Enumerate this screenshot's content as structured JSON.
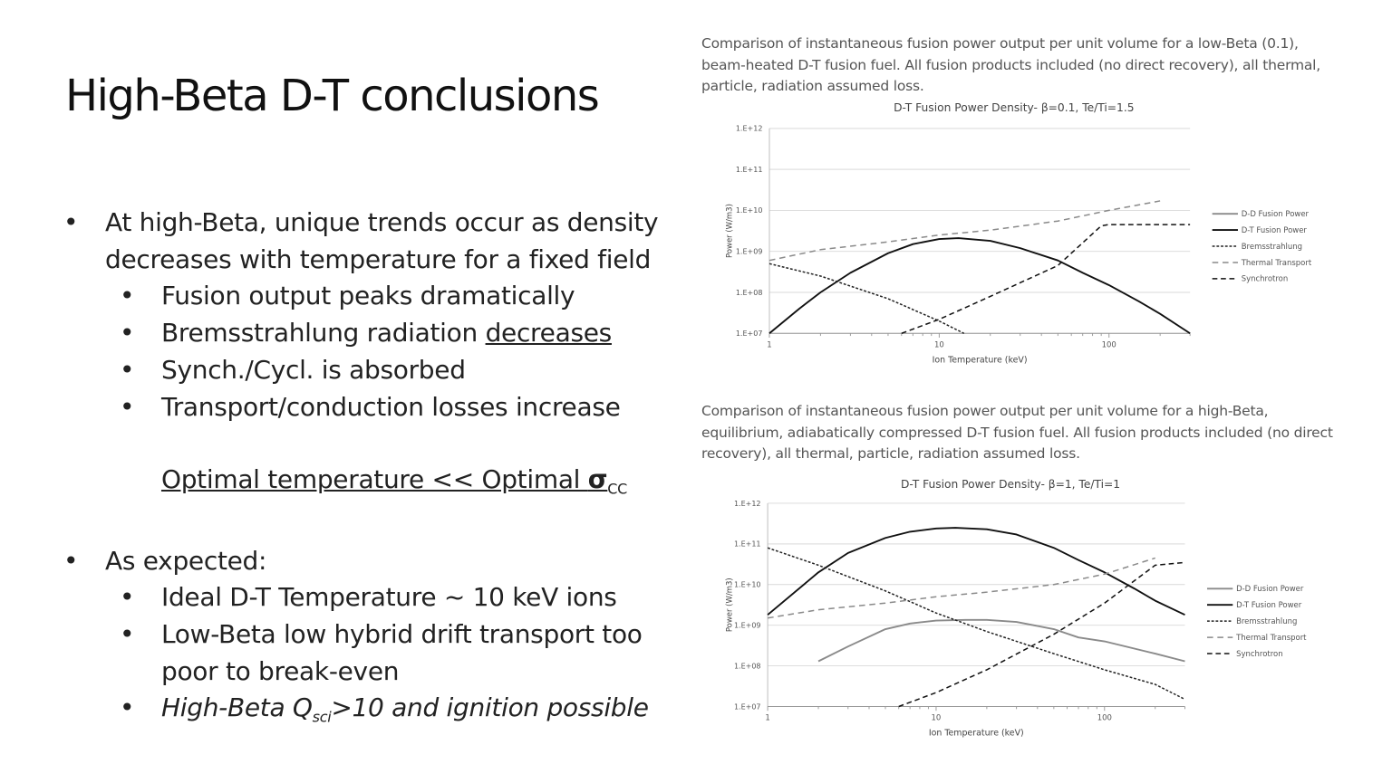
{
  "slide": {
    "title": "High-Beta D-T conclusions",
    "bullet_1": "At high-Beta, unique trends occur as density decreases with temperature for a fixed field",
    "sub_1": [
      "Fusion output peaks dramatically",
      "Bremsstrahlung radiation",
      "Synch./Cycl. is absorbed",
      "Transport/conduction losses increase"
    ],
    "sub_1_underlined": "decreases",
    "optimal_prefix": "Optimal temperature << Optimal ",
    "sigma": "σ",
    "sigma_sub": "CC",
    "bullet_2": "As expected:",
    "sub_2": [
      "Ideal D-T Temperature ~ 10 keV ions",
      "Low-Beta low hybrid drift transport too poor to break-even"
    ],
    "sub_2_last_a": "High-Beta Q",
    "sub_2_last_sub": "sci",
    "sub_2_last_b": ">10 and ignition possible"
  },
  "caption_top": "Comparison of instantaneous fusion power output per unit volume for a low-Beta (0.1), beam-heated D-T fusion fuel. All fusion products included (no direct recovery), all thermal, particle, radiation assumed loss.",
  "caption_bottom": "Comparison of instantaneous fusion power output per unit volume for a high-Beta, equilibrium, adiabatically compressed D-T fusion fuel. All fusion products included (no direct recovery), all thermal, particle, radiation assumed loss.",
  "chart_data": [
    {
      "type": "line",
      "title": "D-T Fusion Power Density- β=0.1, Te/Ti=1.5",
      "xlabel": "Ion Temperature (keV)",
      "ylabel": "Power (W/m3)",
      "x_scale": "log",
      "y_scale": "log",
      "xlim": [
        1,
        300
      ],
      "ylim": [
        10000000.0,
        1000000000000.0
      ],
      "x_ticks": [
        "1",
        "10",
        "100"
      ],
      "y_ticks": [
        "1.E+07",
        "1.E+08",
        "1.E+09",
        "1.E+10",
        "1.E+11",
        "1.E+12"
      ],
      "grid": "horizontal",
      "legend": "right",
      "series": [
        {
          "name": "D-D Fusion Power",
          "style": "solid-gray",
          "x": [],
          "y": []
        },
        {
          "name": "D-T Fusion Power",
          "style": "solid-black",
          "x": [
            1,
            1.5,
            2,
            3,
            5,
            7,
            10,
            13,
            20,
            30,
            50,
            70,
            100,
            150,
            200,
            300
          ],
          "y": [
            10000000.0,
            40000000.0,
            100000000.0,
            300000000.0,
            900000000.0,
            1500000000.0,
            2000000000.0,
            2100000000.0,
            1800000000.0,
            1200000000.0,
            600000000.0,
            300000000.0,
            150000000.0,
            60000000.0,
            30000000.0,
            10000000.0
          ]
        },
        {
          "name": "Bremsstrahlung",
          "style": "dotted-black",
          "x": [
            1,
            2,
            5,
            10,
            14
          ],
          "y": [
            500000000.0,
            250000000.0,
            70000000.0,
            20000000.0,
            10000000.0
          ]
        },
        {
          "name": "Thermal Transport",
          "style": "dashed-gray",
          "x": [
            1,
            2,
            5,
            10,
            20,
            50,
            100,
            200
          ],
          "y": [
            600000000.0,
            1100000000.0,
            1700000000.0,
            2500000000.0,
            3300000000.0,
            5500000000.0,
            10000000000.0,
            17000000000.0
          ]
        },
        {
          "name": "Synchrotron",
          "style": "dashed-black",
          "x": [
            6,
            10,
            20,
            50,
            90,
            100,
            200,
            300
          ],
          "y": [
            10000000.0,
            22000000.0,
            80000000.0,
            450000000.0,
            4200000000.0,
            4500000000.0,
            4500000000.0,
            4500000000.0
          ]
        }
      ]
    },
    {
      "type": "line",
      "title": "D-T Fusion Power Density- β=1, Te/Ti=1",
      "xlabel": "Ion Temperature (keV)",
      "ylabel": "Power (W/m3)",
      "x_scale": "log",
      "y_scale": "log",
      "xlim": [
        1,
        300
      ],
      "ylim": [
        10000000.0,
        1000000000000.0
      ],
      "x_ticks": [
        "1",
        "10",
        "100"
      ],
      "y_ticks": [
        "1.E+07",
        "1.E+08",
        "1.E+09",
        "1.E+10",
        "1.E+11",
        "1.E+12"
      ],
      "grid": "horizontal",
      "legend": "right",
      "series": [
        {
          "name": "D-D Fusion Power",
          "style": "solid-gray",
          "x": [
            2,
            3,
            5,
            7,
            10,
            15,
            20,
            30,
            50,
            70,
            100,
            200,
            300
          ],
          "y": [
            130000000.0,
            300000000.0,
            800000000.0,
            1100000000.0,
            1300000000.0,
            1350000000.0,
            1350000000.0,
            1200000000.0,
            800000000.0,
            500000000.0,
            400000000.0,
            200000000.0,
            130000000.0
          ]
        },
        {
          "name": "D-T Fusion Power",
          "style": "solid-black",
          "x": [
            1,
            2,
            3,
            5,
            7,
            10,
            13,
            20,
            30,
            50,
            70,
            100,
            150,
            200,
            300
          ],
          "y": [
            1800000000.0,
            20000000000.0,
            60000000000.0,
            140000000000.0,
            200000000000.0,
            240000000000.0,
            250000000000.0,
            230000000000.0,
            170000000000.0,
            80000000000.0,
            40000000000.0,
            20000000000.0,
            8000000000.0,
            4000000000.0,
            1800000000.0
          ]
        },
        {
          "name": "Bremsstrahlung",
          "style": "dotted-black",
          "x": [
            1,
            2,
            5,
            10,
            20,
            50,
            100,
            200,
            300
          ],
          "y": [
            80000000000.0,
            30000000000.0,
            7000000000.0,
            2000000000.0,
            700000000.0,
            200000000.0,
            80000000.0,
            35000000.0,
            15000000.0
          ]
        },
        {
          "name": "Thermal Transport",
          "style": "dashed-gray",
          "x": [
            1,
            2,
            5,
            10,
            20,
            50,
            100,
            200
          ],
          "y": [
            1500000000.0,
            2400000000.0,
            3500000000.0,
            5000000000.0,
            6500000000.0,
            10000000000.0,
            18000000000.0,
            45000000000.0
          ]
        },
        {
          "name": "Synchrotron",
          "style": "dashed-black",
          "x": [
            6,
            10,
            20,
            50,
            100,
            200,
            300
          ],
          "y": [
            10000000.0,
            22000000.0,
            80000000.0,
            600000000.0,
            3500000000.0,
            30000000000.0,
            35000000000.0
          ]
        }
      ]
    }
  ]
}
